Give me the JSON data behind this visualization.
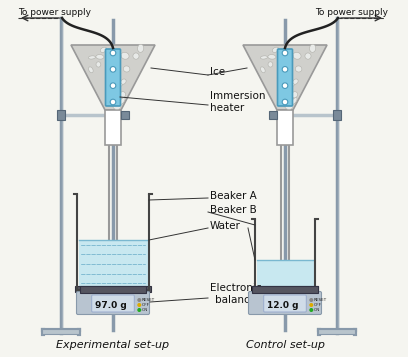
{
  "bg_color": "#f5f5f0",
  "left_label": "Experimental set-up",
  "right_label": "Control set-up",
  "left_power": "To power supply",
  "right_power": "To power supply",
  "label_ice": "Ice",
  "label_heater": "Immersion\nheater",
  "label_beakerA": "Beaker A",
  "label_beakerB": "Beaker B",
  "label_water": "Water",
  "label_balance": "Electronic\nbalance",
  "left_reading": "97.0 g",
  "right_reading": "12.0 g",
  "ice_color": "#d0d0cc",
  "heater_color": "#7ec8e3",
  "heater_edge": "#4a9abb",
  "water_color": "#c8e8f0",
  "water_line_color": "#7ab8d0",
  "stand_color": "#b8c4cc",
  "stand_dark": "#8899aa",
  "balance_body": "#b8c4d0",
  "balance_screen": "#d0dce8",
  "wire_color": "#222222",
  "line_color": "#333333",
  "beaker_color": "#444444",
  "funnel_color": "#999999"
}
